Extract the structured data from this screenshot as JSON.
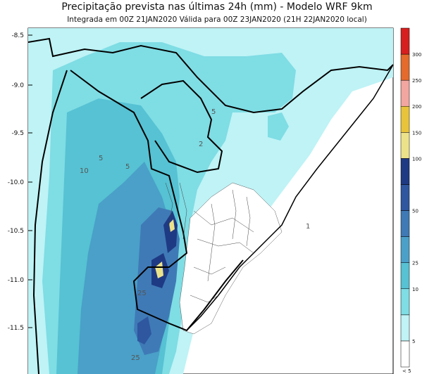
{
  "title": "Precipitação prevista nas últimas 24h (mm) - Modelo WRF 9km",
  "subtitle": "Integrada em 00Z 21JAN2020     Válida para 00Z 23JAN2020  (21H 22JAN2020 local)",
  "y_axis": {
    "ticks": [
      "-8.5",
      "-9.0",
      "-9.5",
      "-10.0",
      "-10.5",
      "-11.0",
      "-11.5"
    ]
  },
  "colorbar": {
    "levels": [
      "5",
      "10",
      "25",
      "50",
      "100",
      "150",
      "200",
      "250",
      "300"
    ],
    "colors": [
      "#ffffff",
      "#bff3f6",
      "#7fdde4",
      "#56c2d3",
      "#4aa0c8",
      "#3f7ab6",
      "#2e57a0",
      "#1f3a84",
      "#ece28a",
      "#e8c43a",
      "#f2a6a0",
      "#e46b2c",
      "#d81f1f"
    ],
    "bottom_label": "< 5"
  },
  "contour_labels": [
    "5",
    "5",
    "10",
    "25",
    "25",
    "2",
    "5",
    "1"
  ],
  "colors": {
    "land": "#ffffff",
    "ocean": "#bff3f6",
    "border": "#000000"
  }
}
